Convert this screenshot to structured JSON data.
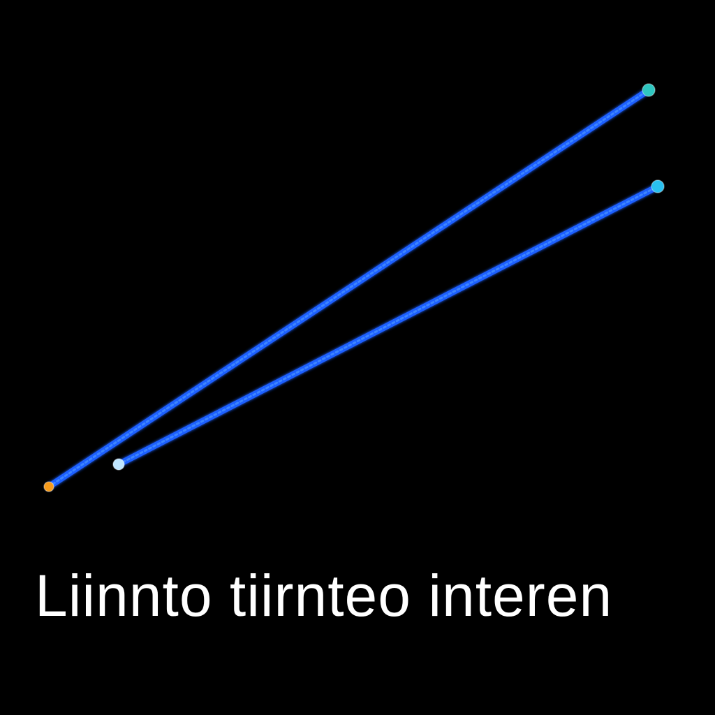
{
  "caption": "Liinnto tiirnteo interen",
  "colors": {
    "background": "#000000",
    "line": "#1f5fff",
    "line_highlight": "#3d86ff",
    "caption": "#ffffff",
    "dot_orange": "#f59a1b",
    "dot_light_blue": "#bfe6ff",
    "dot_teal": "#2ec6c0",
    "dot_cyan": "#29c0f0"
  },
  "icons": [
    "line-endpoint-dot"
  ]
}
